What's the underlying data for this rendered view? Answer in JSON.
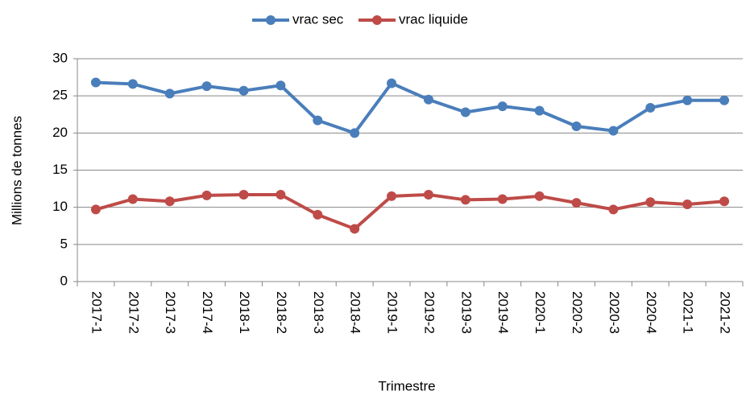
{
  "chart_data": {
    "type": "line",
    "x_label": "Trimestre",
    "y_label": "Millions de tonnes",
    "categories": [
      "2017-1",
      "2017-2",
      "2017-3",
      "2017-4",
      "2018-1",
      "2018-2",
      "2018-3",
      "2018-4",
      "2019-1",
      "2019-2",
      "2019-3",
      "2019-4",
      "2020-1",
      "2020-2",
      "2020-3",
      "2020-4",
      "2021-1",
      "2021-2"
    ],
    "series": [
      {
        "name": "vrac sec",
        "color": "#4a7ebb",
        "values": [
          26.8,
          26.6,
          25.3,
          26.3,
          25.7,
          26.4,
          21.7,
          20.0,
          26.7,
          24.5,
          22.8,
          23.6,
          23.0,
          20.9,
          20.3,
          23.4,
          24.4,
          24.4
        ]
      },
      {
        "name": "vrac liquide",
        "color": "#be4b48",
        "values": [
          9.7,
          11.1,
          10.8,
          11.6,
          11.7,
          11.7,
          9.0,
          7.1,
          11.5,
          11.7,
          11.0,
          11.1,
          11.5,
          10.6,
          9.7,
          10.7,
          10.4,
          10.8
        ]
      }
    ],
    "ylim": [
      0,
      30
    ],
    "yticks": [
      0,
      5,
      10,
      15,
      20,
      25,
      30
    ],
    "grid": true,
    "legend": "top"
  }
}
